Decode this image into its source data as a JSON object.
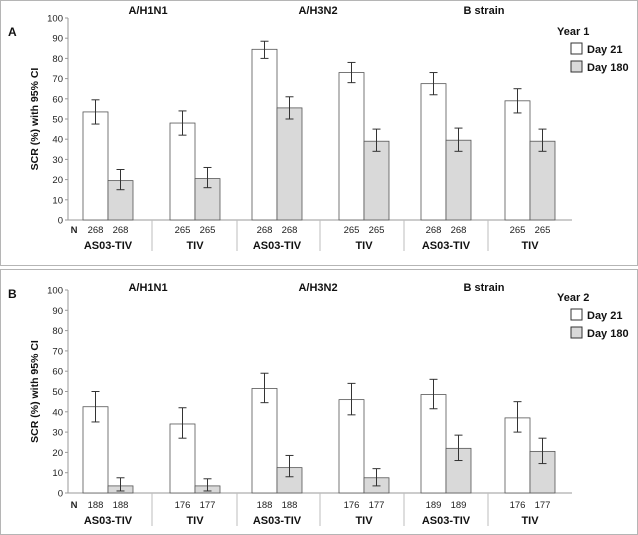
{
  "chart_data": [
    {
      "type": "bar",
      "panel": "A",
      "ylabel": "SCR (%) with 95% CI",
      "ylim": [
        0,
        100
      ],
      "yticks": [
        0,
        10,
        20,
        30,
        40,
        50,
        60,
        70,
        80,
        90,
        100
      ],
      "legend": {
        "title": "Year 1",
        "entries": [
          "Day 21",
          "Day 180"
        ],
        "colors": [
          "#ffffff",
          "#d9d9d9"
        ],
        "position": "top-right"
      },
      "strains": [
        "A/H1N1",
        "A/H3N2",
        "B strain"
      ],
      "groups": [
        "AS03-TIV",
        "TIV",
        "AS03-TIV",
        "TIV",
        "AS03-TIV",
        "TIV"
      ],
      "n_label": "N",
      "n_values": [
        [
          "268",
          "268"
        ],
        [
          "265",
          "265"
        ],
        [
          "268",
          "268"
        ],
        [
          "265",
          "265"
        ],
        [
          "268",
          "268"
        ],
        [
          "265",
          "265"
        ]
      ],
      "series": [
        {
          "name": "Day 21",
          "values": [
            53.5,
            48,
            84.5,
            73,
            67.5,
            59
          ],
          "ci_low": [
            47.5,
            42,
            80,
            68,
            62,
            53
          ],
          "ci_high": [
            59.5,
            54,
            88.5,
            78,
            73,
            65
          ]
        },
        {
          "name": "Day 180",
          "values": [
            19.5,
            20.5,
            55.5,
            39,
            39.5,
            39
          ],
          "ci_low": [
            15,
            16,
            50,
            34,
            34,
            34
          ],
          "ci_high": [
            25,
            26,
            61,
            45,
            45.5,
            45
          ]
        }
      ]
    },
    {
      "type": "bar",
      "panel": "B",
      "ylabel": "SCR (%) with 95% CI",
      "ylim": [
        0,
        100
      ],
      "yticks": [
        0,
        10,
        20,
        30,
        40,
        50,
        60,
        70,
        80,
        90,
        100
      ],
      "legend": {
        "title": "Year 2",
        "entries": [
          "Day 21",
          "Day 180"
        ],
        "colors": [
          "#ffffff",
          "#d9d9d9"
        ],
        "position": "top-right"
      },
      "strains": [
        "A/H1N1",
        "A/H3N2",
        "B strain"
      ],
      "groups": [
        "AS03-TIV",
        "TIV",
        "AS03-TIV",
        "TIV",
        "AS03-TIV",
        "TIV"
      ],
      "n_label": "N",
      "n_values": [
        [
          "188",
          "188"
        ],
        [
          "176",
          "177"
        ],
        [
          "188",
          "188"
        ],
        [
          "176",
          "177"
        ],
        [
          "189",
          "189"
        ],
        [
          "176",
          "177"
        ]
      ],
      "series": [
        {
          "name": "Day 21",
          "values": [
            42.5,
            34,
            51.5,
            46,
            48.5,
            37
          ],
          "ci_low": [
            35,
            27,
            44.5,
            38.5,
            41.5,
            30
          ],
          "ci_high": [
            50,
            42,
            59,
            54,
            56,
            45
          ]
        },
        {
          "name": "Day 180",
          "values": [
            3.5,
            3.5,
            12.5,
            7.5,
            22,
            20.5
          ],
          "ci_low": [
            1,
            1,
            8,
            3.5,
            16,
            14.5
          ],
          "ci_high": [
            7.5,
            7,
            18.5,
            12,
            28.5,
            27
          ]
        }
      ]
    }
  ]
}
